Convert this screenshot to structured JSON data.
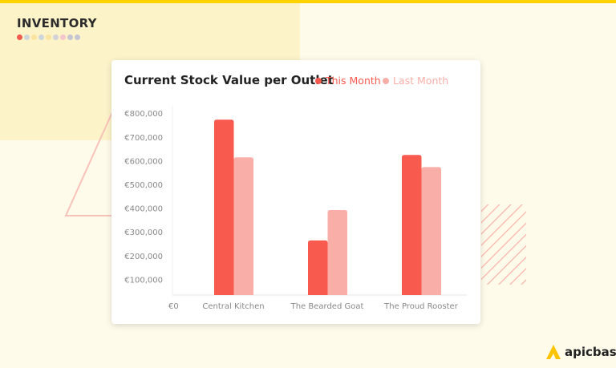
{
  "header": {
    "title": "INVENTORY",
    "dot_colors": [
      "#f05a4f",
      "#cfd6d9",
      "#fbe3a0",
      "#cfd6d9",
      "#fbe3a0",
      "#d4d2d9",
      "#f7c6cb",
      "#c5c5d2",
      "#c5c5d2"
    ]
  },
  "brand": {
    "name": "apicbase",
    "icon": "apicbase-logo-icon"
  },
  "colors": {
    "accent": "#ffd200",
    "this_month": "#f95a4e",
    "last_month": "#f9afa8"
  },
  "chart_data": {
    "type": "bar",
    "title": "Current Stock Value per Outlet",
    "categories": [
      "Central Kitchen",
      "The Bearded Goat",
      "The Proud Rooster"
    ],
    "series": [
      {
        "name": "This Month",
        "values": [
          773000,
          264000,
          624000
        ]
      },
      {
        "name": "Last Month",
        "values": [
          614000,
          392000,
          573000
        ]
      }
    ],
    "yticks": [
      "€0",
      "€100,000",
      "€200,000",
      "€300,000",
      "€400,000",
      "€500,000",
      "€600,000",
      "€700,000",
      "€800,000"
    ],
    "ylim": [
      0,
      800000
    ],
    "legend": "top-right",
    "grid": false,
    "xlabel": "",
    "ylabel": ""
  }
}
